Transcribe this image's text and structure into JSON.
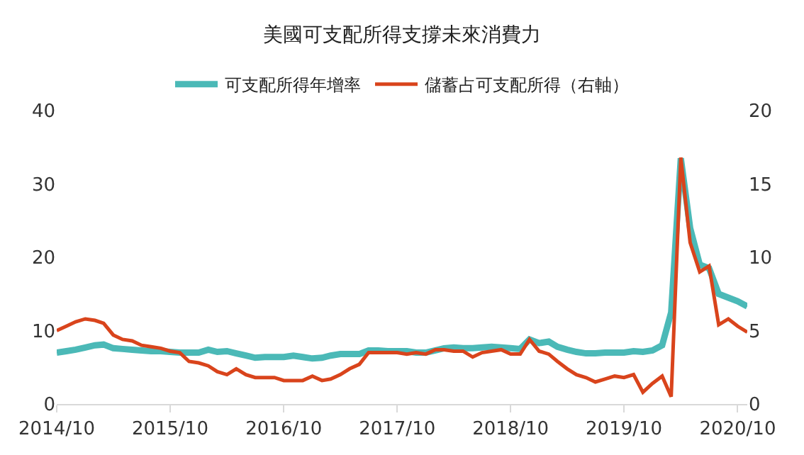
{
  "chart_data": {
    "type": "line",
    "title": "美國可支配所得支撐未來消費力",
    "legend": "top",
    "grid": false,
    "marker": "none",
    "line_style": "solid",
    "x": [
      "2014-10",
      "2014-11",
      "2014-12",
      "2015-01",
      "2015-02",
      "2015-03",
      "2015-04",
      "2015-05",
      "2015-06",
      "2015-07",
      "2015-08",
      "2015-09",
      "2015-10",
      "2015-11",
      "2015-12",
      "2016-01",
      "2016-02",
      "2016-03",
      "2016-04",
      "2016-05",
      "2016-06",
      "2016-07",
      "2016-08",
      "2016-09",
      "2016-10",
      "2016-11",
      "2016-12",
      "2017-01",
      "2017-02",
      "2017-03",
      "2017-04",
      "2017-05",
      "2017-06",
      "2017-07",
      "2017-08",
      "2017-09",
      "2017-10",
      "2017-11",
      "2017-12",
      "2018-01",
      "2018-02",
      "2018-03",
      "2018-04",
      "2018-05",
      "2018-06",
      "2018-07",
      "2018-08",
      "2018-09",
      "2018-10",
      "2018-11",
      "2018-12",
      "2019-01",
      "2019-02",
      "2019-03",
      "2019-04",
      "2019-05",
      "2019-06",
      "2019-07",
      "2019-08",
      "2019-09",
      "2019-10",
      "2019-11",
      "2019-12",
      "2020-01",
      "2020-02",
      "2020-03",
      "2020-04",
      "2020-05",
      "2020-06",
      "2020-07",
      "2020-08",
      "2020-09",
      "2020-10",
      "2020-11"
    ],
    "series": [
      {
        "name": "可支配所得年增率",
        "color": "#4bb9b7",
        "values": [
          7.0,
          7.2,
          7.4,
          7.7,
          8.0,
          8.1,
          7.6,
          7.5,
          7.4,
          7.3,
          7.2,
          7.2,
          7.1,
          7.0,
          7.0,
          7.0,
          7.4,
          7.1,
          7.2,
          6.9,
          6.6,
          6.3,
          6.4,
          6.4,
          6.4,
          6.6,
          6.4,
          6.2,
          6.3,
          6.6,
          6.8,
          6.8,
          6.8,
          7.3,
          7.3,
          7.2,
          7.2,
          7.2,
          7.0,
          7.0,
          7.3,
          7.6,
          7.7,
          7.6,
          7.6,
          7.7,
          7.8,
          7.7,
          7.6,
          7.5,
          8.8,
          8.3,
          8.5,
          7.8,
          7.4,
          7.1,
          6.9,
          6.9,
          7.0,
          7.0,
          7.0,
          7.2,
          7.1,
          7.3,
          8.0,
          12.5,
          33.5,
          24,
          19,
          18.5,
          15,
          14.5,
          14,
          13.3
        ]
      },
      {
        "name": "儲蓄占可支配所得（右軸）",
        "color": "#d9441c",
        "axis": "y2",
        "values": [
          5.0,
          5.3,
          5.6,
          5.8,
          5.7,
          5.5,
          4.7,
          4.4,
          4.3,
          4.0,
          3.9,
          3.8,
          3.6,
          3.5,
          2.9,
          2.8,
          2.6,
          2.2,
          2.0,
          2.4,
          2.0,
          1.8,
          1.8,
          1.8,
          1.6,
          1.6,
          1.6,
          1.9,
          1.6,
          1.7,
          2.0,
          2.4,
          2.7,
          3.5,
          3.5,
          3.5,
          3.5,
          3.4,
          3.5,
          3.4,
          3.7,
          3.7,
          3.6,
          3.6,
          3.2,
          3.5,
          3.6,
          3.7,
          3.4,
          3.4,
          4.4,
          3.6,
          3.4,
          2.9,
          2.4,
          2.0,
          1.8,
          1.5,
          1.7,
          1.9,
          1.8,
          2.0,
          0.8,
          1.4,
          1.9,
          0.5,
          16.8,
          11,
          9,
          9.4,
          5.4,
          5.8,
          5.3,
          4.9
        ]
      }
    ],
    "xlim": [
      "2014-10",
      "2020-11"
    ],
    "xticks": [
      {
        "value": "2014-10",
        "label": "2014/10"
      },
      {
        "value": "2015-10",
        "label": "2015/10"
      },
      {
        "value": "2016-10",
        "label": "2016/10"
      },
      {
        "value": "2017-10",
        "label": "2017/10"
      },
      {
        "value": "2018-10",
        "label": "2018/10"
      },
      {
        "value": "2019-10",
        "label": "2019/10"
      },
      {
        "value": "2020-10",
        "label": "2020/10"
      }
    ],
    "ylim": [
      0,
      40
    ],
    "yticks": [
      0,
      10,
      20,
      30,
      40
    ],
    "y2lim": [
      0,
      20
    ],
    "y2ticks": [
      0,
      5,
      10,
      15,
      20
    ]
  }
}
